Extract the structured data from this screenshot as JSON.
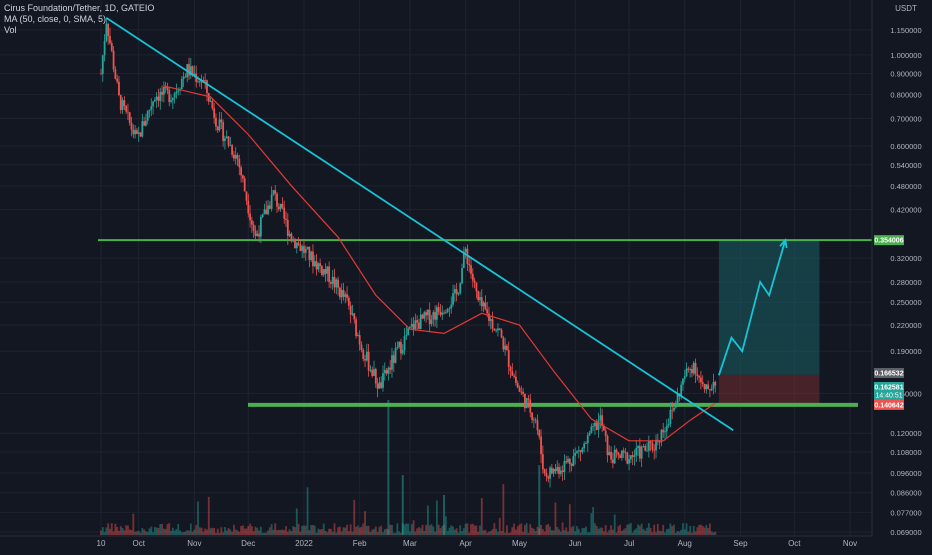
{
  "legend": {
    "symbol_line": "Cirus Foundation/Tether, 1D, GATEIO",
    "ma_line": "MA (50, close, 0, SMA, 5)",
    "vol_line": "Vol"
  },
  "colors": {
    "background": "#131722",
    "up_candle": "#26a69a",
    "down_candle": "#ef5350",
    "ma_line": "#e53935",
    "trendline": "#17c3d6",
    "horizontal_level": "#4caf50",
    "projection": "#17c3d6"
  },
  "chart_data": {
    "type": "line",
    "scale": "log",
    "currency_label": "USDT",
    "y_ticks": [
      "1.150000",
      "1.000000",
      "0.900000",
      "0.800000",
      "0.700000",
      "0.600000",
      "0.540000",
      "0.480000",
      "0.420000",
      "0.320000",
      "0.280000",
      "0.250000",
      "0.220000",
      "0.190000",
      "0.150000",
      "0.120000",
      "0.108000",
      "0.096000",
      "0.086000",
      "0.077000",
      "0.069000"
    ],
    "x_ticks": [
      "10",
      "Oct",
      "Nov",
      "Dec",
      "2022",
      "Feb",
      "Mar",
      "Apr",
      "May",
      "Jun",
      "Jul",
      "Aug",
      "Sep",
      "Oct",
      "Nov"
    ],
    "price_labels": [
      {
        "value": "0.354006",
        "color": "#4caf50"
      },
      {
        "value": "0.166532",
        "color": "#5d6068"
      },
      {
        "value": "0.162581",
        "sub": "14:40:51",
        "color": "#26a69a"
      },
      {
        "value": "0.140642",
        "color": "#ef5350"
      }
    ],
    "resistance_level": 0.354006,
    "support_level": 0.140642,
    "current_price": 0.162581,
    "trendline": [
      {
        "x": "Sep 13 2021",
        "y": 1.23
      },
      {
        "x": "Aug 28 2022",
        "y": 0.122
      }
    ],
    "price_series": [
      {
        "x": "Sep 10 2021",
        "y": 0.9
      },
      {
        "x": "Sep 13 2021",
        "y": 1.22
      },
      {
        "x": "Sep 20 2021",
        "y": 0.78
      },
      {
        "x": "Sep 30 2021",
        "y": 0.62
      },
      {
        "x": "Oct 10 2021",
        "y": 0.8
      },
      {
        "x": "Oct 20 2021",
        "y": 0.8
      },
      {
        "x": "Oct 28 2021",
        "y": 0.92
      },
      {
        "x": "Nov 6 2021",
        "y": 0.86
      },
      {
        "x": "Nov 14 2021",
        "y": 0.68
      },
      {
        "x": "Nov 25 2021",
        "y": 0.56
      },
      {
        "x": "Dec 5 2021",
        "y": 0.36
      },
      {
        "x": "Dec 15 2021",
        "y": 0.46
      },
      {
        "x": "Dec 25 2021",
        "y": 0.36
      },
      {
        "x": "Jan 5 2022",
        "y": 0.32
      },
      {
        "x": "Jan 15 2022",
        "y": 0.29
      },
      {
        "x": "Jan 25 2022",
        "y": 0.25
      },
      {
        "x": "Feb 3 2022",
        "y": 0.19
      },
      {
        "x": "Feb 12 2022",
        "y": 0.155
      },
      {
        "x": "Feb 22 2022",
        "y": 0.19
      },
      {
        "x": "Mar 3 2022",
        "y": 0.22
      },
      {
        "x": "Mar 15 2022",
        "y": 0.235
      },
      {
        "x": "Mar 27 2022",
        "y": 0.26
      },
      {
        "x": "Apr 1 2022",
        "y": 0.335
      },
      {
        "x": "Apr 8 2022",
        "y": 0.25
      },
      {
        "x": "Apr 20 2022",
        "y": 0.21
      },
      {
        "x": "Apr 30 2022",
        "y": 0.155
      },
      {
        "x": "May 10 2022",
        "y": 0.13
      },
      {
        "x": "May 15 2022",
        "y": 0.095
      },
      {
        "x": "May 25 2022",
        "y": 0.1
      },
      {
        "x": "Jun 5 2022",
        "y": 0.11
      },
      {
        "x": "Jun 15 2022",
        "y": 0.13
      },
      {
        "x": "Jun 20 2022",
        "y": 0.105
      },
      {
        "x": "Jul 1 2022",
        "y": 0.105
      },
      {
        "x": "Jul 15 2022",
        "y": 0.112
      },
      {
        "x": "Jul 25 2022",
        "y": 0.135
      },
      {
        "x": "Aug 1 2022",
        "y": 0.165
      },
      {
        "x": "Aug 6 2022",
        "y": 0.178
      },
      {
        "x": "Aug 12 2022",
        "y": 0.15
      },
      {
        "x": "Aug 18 2022",
        "y": 0.162
      }
    ],
    "ma_series": [
      {
        "x": "Oct 15 2021",
        "y": 0.84
      },
      {
        "x": "Nov 10 2021",
        "y": 0.79
      },
      {
        "x": "Dec 1 2021",
        "y": 0.64
      },
      {
        "x": "Dec 25 2021",
        "y": 0.48
      },
      {
        "x": "Jan 20 2022",
        "y": 0.36
      },
      {
        "x": "Feb 10 2022",
        "y": 0.26
      },
      {
        "x": "Mar 1 2022",
        "y": 0.215
      },
      {
        "x": "Mar 20 2022",
        "y": 0.21
      },
      {
        "x": "Apr 10 2022",
        "y": 0.235
      },
      {
        "x": "May 1 2022",
        "y": 0.22
      },
      {
        "x": "May 20 2022",
        "y": 0.17
      },
      {
        "x": "Jun 10 2022",
        "y": 0.13
      },
      {
        "x": "Jul 1 2022",
        "y": 0.115
      },
      {
        "x": "Jul 20 2022",
        "y": 0.115
      },
      {
        "x": "Aug 5 2022",
        "y": 0.13
      },
      {
        "x": "Aug 18 2022",
        "y": 0.142
      }
    ],
    "long_position": {
      "start": "Aug 20 2022",
      "end": "Oct 15 2022",
      "entry": 0.166532,
      "target": 0.354006,
      "stop": 0.140642
    },
    "projection_path": [
      {
        "x": "Aug 20 2022",
        "y": 0.166
      },
      {
        "x": "Aug 27 2022",
        "y": 0.205
      },
      {
        "x": "Sep 2 2022",
        "y": 0.19
      },
      {
        "x": "Sep 12 2022",
        "y": 0.28
      },
      {
        "x": "Sep 17 2022",
        "y": 0.26
      },
      {
        "x": "Sep 26 2022",
        "y": 0.354
      }
    ]
  }
}
